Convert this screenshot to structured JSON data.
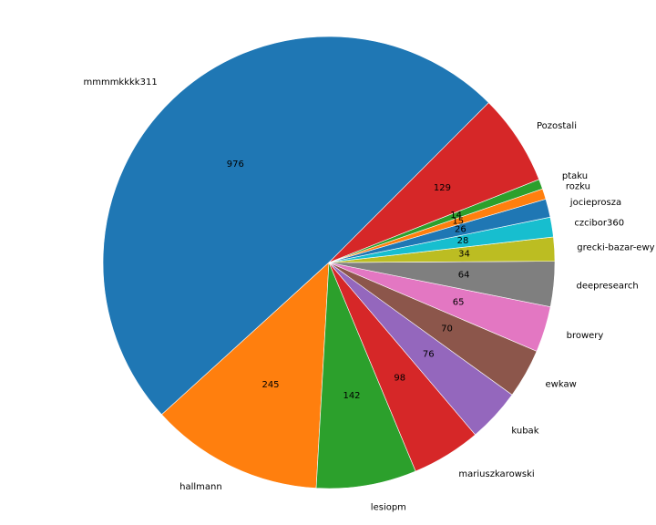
{
  "chart_data": {
    "type": "pie",
    "title": "",
    "slices": [
      {
        "label": "mmmmkkkk311",
        "value": 976,
        "color": "#1f77b4"
      },
      {
        "label": "hallmann",
        "value": 245,
        "color": "#ff7f0e"
      },
      {
        "label": "lesiopm",
        "value": 142,
        "color": "#2ca02c"
      },
      {
        "label": "mariuszkarowski",
        "value": 98,
        "color": "#d62728"
      },
      {
        "label": "kubak",
        "value": 76,
        "color": "#9467bd"
      },
      {
        "label": "ewkaw",
        "value": 70,
        "color": "#8c564b"
      },
      {
        "label": "browery",
        "value": 65,
        "color": "#e377c2"
      },
      {
        "label": "deepresearch",
        "value": 64,
        "color": "#7f7f7f"
      },
      {
        "label": "grecki-bazar-ewy",
        "value": 34,
        "color": "#bcbd22"
      },
      {
        "label": "czcibor360",
        "value": 28,
        "color": "#17becf"
      },
      {
        "label": "jocieprosza",
        "value": 26,
        "color": "#1f77b4"
      },
      {
        "label": "rozku",
        "value": 15,
        "color": "#ff7f0e"
      },
      {
        "label": "ptaku",
        "value": 14,
        "color": "#2ca02c"
      },
      {
        "label": "Pozostali",
        "value": 129,
        "color": "#d62728"
      }
    ],
    "start_angle_deg": 45,
    "direction": "counterclockwise",
    "legend": "none"
  }
}
